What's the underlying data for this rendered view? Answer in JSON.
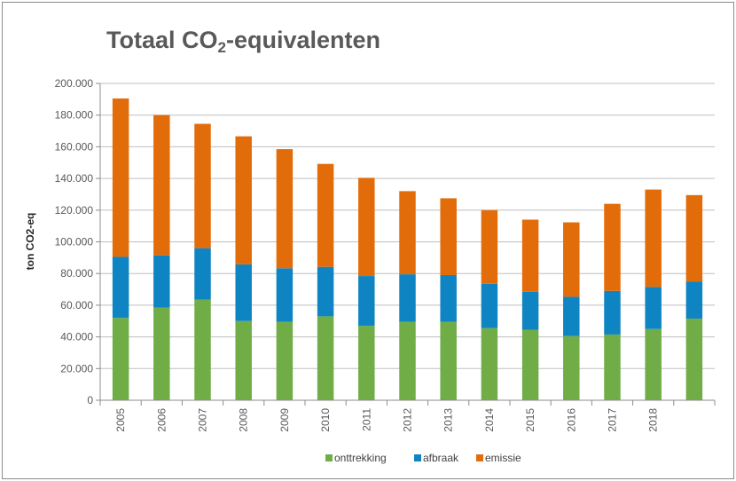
{
  "chart_data": {
    "type": "bar",
    "stacked": true,
    "title_main": "Totaal CO",
    "title_sub": "2",
    "title_rest": "-equivalenten",
    "ylabel": "ton CO2-eq",
    "xlabel": "",
    "ylim": [
      0,
      200000
    ],
    "yticks": [
      0,
      20000,
      40000,
      60000,
      80000,
      100000,
      120000,
      140000,
      160000,
      180000,
      200000
    ],
    "ytick_labels": [
      "0",
      "20.000",
      "40.000",
      "60.000",
      "80.000",
      "100.000",
      "120.000",
      "140.000",
      "160.000",
      "180.000",
      "200.000"
    ],
    "grid": true,
    "legend_position": "bottom",
    "categories": [
      "2005",
      "2006",
      "2007",
      "2008",
      "2009",
      "2010",
      "2011",
      "2012",
      "2013",
      "2014",
      "2015",
      "2016",
      "2017",
      "2018",
      ""
    ],
    "series": [
      {
        "name": "onttrekking",
        "color": "#70ad47",
        "values": [
          52000,
          58500,
          63500,
          50000,
          49500,
          53000,
          47000,
          49500,
          49500,
          45500,
          44500,
          40500,
          41500,
          45000,
          51500
        ]
      },
      {
        "name": "afbraak",
        "color": "#0e85c2",
        "values": [
          38500,
          33000,
          32500,
          35800,
          33800,
          31200,
          31400,
          30000,
          29500,
          28000,
          24000,
          24800,
          27500,
          26500,
          23500
        ]
      },
      {
        "name": "emissie",
        "color": "#e36c0a",
        "values": [
          100000,
          88500,
          78500,
          80800,
          75200,
          65000,
          62000,
          52500,
          48500,
          46500,
          45500,
          47000,
          55000,
          61500,
          54500
        ]
      }
    ]
  }
}
